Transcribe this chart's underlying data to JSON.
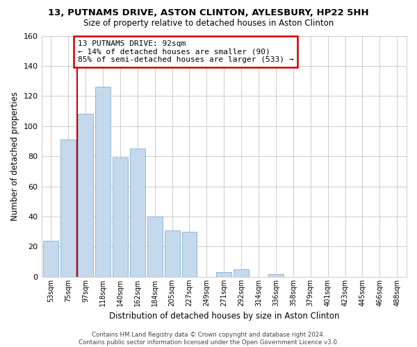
{
  "title": "13, PUTNAMS DRIVE, ASTON CLINTON, AYLESBURY, HP22 5HH",
  "subtitle": "Size of property relative to detached houses in Aston Clinton",
  "xlabel": "Distribution of detached houses by size in Aston Clinton",
  "ylabel": "Number of detached properties",
  "bar_labels": [
    "53sqm",
    "75sqm",
    "97sqm",
    "118sqm",
    "140sqm",
    "162sqm",
    "184sqm",
    "205sqm",
    "227sqm",
    "249sqm",
    "271sqm",
    "292sqm",
    "314sqm",
    "336sqm",
    "358sqm",
    "379sqm",
    "401sqm",
    "423sqm",
    "445sqm",
    "466sqm",
    "488sqm"
  ],
  "bar_values": [
    24,
    91,
    108,
    126,
    79,
    85,
    40,
    31,
    30,
    0,
    3,
    5,
    0,
    2,
    0,
    0,
    0,
    0,
    0,
    0,
    0
  ],
  "bar_color": "#c5d9ed",
  "bar_edgecolor": "#7fafd4",
  "vline_x": 2,
  "vline_color": "#cc0000",
  "annotation_text": "13 PUTNAMS DRIVE: 92sqm\n← 14% of detached houses are smaller (90)\n85% of semi-detached houses are larger (533) →",
  "annotation_box_edgecolor": "#cc0000",
  "ylim": [
    0,
    160
  ],
  "yticks": [
    0,
    20,
    40,
    60,
    80,
    100,
    120,
    140,
    160
  ],
  "footer": "Contains HM Land Registry data © Crown copyright and database right 2024.\nContains public sector information licensed under the Open Government Licence v3.0.",
  "background_color": "#ffffff",
  "grid_color": "#cccccc"
}
